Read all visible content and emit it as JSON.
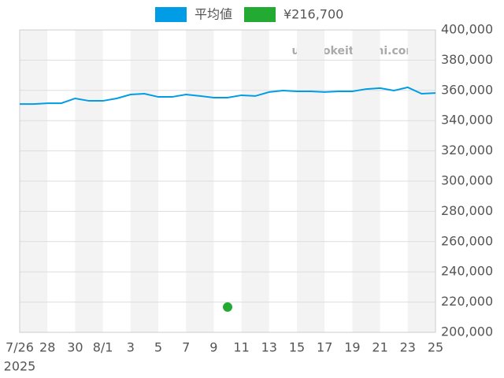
{
  "chart_data": {
    "type": "line",
    "watermark": "udedokeitoushi.com",
    "categories": [
      "7/26",
      null,
      "28",
      null,
      "30",
      null,
      "8/1",
      null,
      "3",
      null,
      "5",
      null,
      "7",
      null,
      "9",
      null,
      "11",
      null,
      "13",
      null,
      "15",
      null,
      "17",
      null,
      "19",
      null,
      "21",
      null,
      "23",
      null,
      "25"
    ],
    "x_year_label": "2025",
    "series": [
      {
        "name": "平均値",
        "color": "#009de6",
        "type": "line",
        "values": [
          351000,
          351000,
          351500,
          351500,
          354700,
          353100,
          353100,
          354700,
          357300,
          357800,
          355700,
          355700,
          357300,
          356300,
          355200,
          355200,
          356800,
          356300,
          358900,
          359900,
          359400,
          359400,
          358900,
          359400,
          359400,
          360900,
          361500,
          359900,
          362000,
          357800,
          358300
        ]
      },
      {
        "name": "¥216,700",
        "color": "#22aa33",
        "type": "scatter",
        "values": [
          null,
          null,
          null,
          null,
          null,
          null,
          null,
          null,
          null,
          null,
          null,
          null,
          null,
          null,
          null,
          216700,
          null,
          null,
          null,
          null,
          null,
          null,
          null,
          null,
          null,
          null,
          null,
          null,
          null,
          null,
          null
        ]
      }
    ],
    "ylim": [
      200000,
      400000
    ],
    "yticks": [
      {
        "value": 200000,
        "label": "200,000"
      },
      {
        "value": 220000,
        "label": "220,000"
      },
      {
        "value": 240000,
        "label": "240,000"
      },
      {
        "value": 260000,
        "label": "260,000"
      },
      {
        "value": 280000,
        "label": "280,000"
      },
      {
        "value": 300000,
        "label": "300,000"
      },
      {
        "value": 320000,
        "label": "320,000"
      },
      {
        "value": 340000,
        "label": "340,000"
      },
      {
        "value": 360000,
        "label": "360,000"
      },
      {
        "value": 380000,
        "label": "380,000"
      },
      {
        "value": 400000,
        "label": "400,000"
      }
    ],
    "grid": true,
    "legend": "top"
  }
}
